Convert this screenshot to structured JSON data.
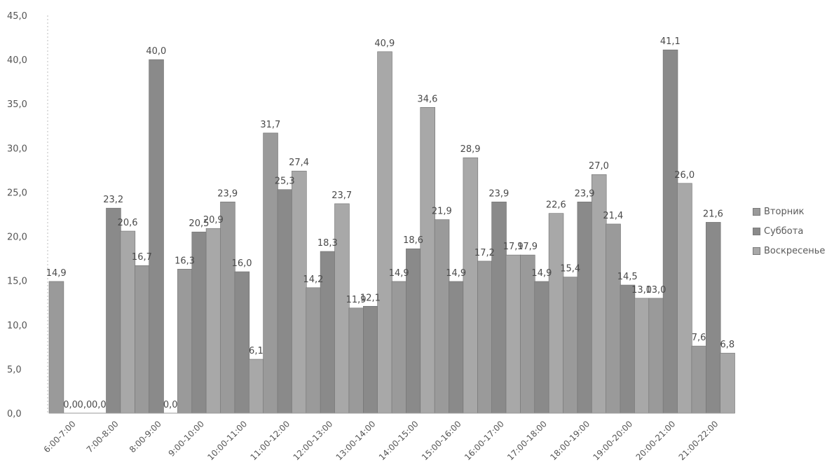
{
  "chart_data": {
    "type": "bar",
    "categories": [
      "6:00-7:00",
      "7:00-8:00",
      "8:00-9:00",
      "9:00-10:00",
      "10:00-11:00",
      "11:00-12:00",
      "12:00-13:00",
      "13:00-14:00",
      "14:00-15:00",
      "15:00-16:00",
      "16:00-17:00",
      "17:00-18:00",
      "18:00-19:00",
      "19:00-20:00",
      "20:00-21:00",
      "21:00-22:00"
    ],
    "series": [
      {
        "name": "Вторник",
        "color": "#9a9a9a",
        "values": [
          14.9,
          0.0,
          16.7,
          16.3,
          23.9,
          31.7,
          14.2,
          11.9,
          14.9,
          21.9,
          17.2,
          17.9,
          15.4,
          21.4,
          13.0,
          7.6
        ]
      },
      {
        "name": "Суббота",
        "color": "#8a8a8a",
        "values": [
          0.0,
          23.2,
          40.0,
          20.5,
          16.0,
          25.3,
          18.3,
          12.1,
          18.6,
          14.9,
          23.9,
          14.9,
          23.9,
          14.5,
          41.1,
          21.6
        ]
      },
      {
        "name": "Воскресенье",
        "color": "#a8a8a8",
        "values": [
          0.0,
          20.6,
          0.0,
          20.9,
          6.1,
          27.4,
          23.7,
          40.9,
          34.6,
          28.9,
          17.9,
          22.6,
          27.0,
          13.0,
          26.0,
          6.8
        ]
      }
    ],
    "data_labels": [
      [
        "14,9",
        "0,0",
        "16,7",
        "16,3",
        "23,9",
        "31,7",
        "14,2",
        "11,9",
        "14,9",
        "21,9",
        "17,2",
        "17,9",
        "15,4",
        "21,4",
        "13,0",
        "7,6"
      ],
      [
        "0,0",
        "23,2",
        "40,0",
        "20,5",
        "16,0",
        "25,3",
        "18,3",
        "12,1",
        "18,6",
        "14,9",
        "23,9",
        "14,9",
        "23,9",
        "14,5",
        "41,1",
        "21,6"
      ],
      [
        "0,0",
        "20,6",
        "0,0",
        "20,9",
        "6,1",
        "27,4",
        "23,7",
        "40,9",
        "34,6",
        "28,9",
        "17,9",
        "22,6",
        "27,0",
        "13,0",
        "26,0",
        "6,8"
      ]
    ],
    "y_ticks": [
      "0,0",
      "5,0",
      "10,0",
      "15,0",
      "20,0",
      "25,0",
      "30,0",
      "35,0",
      "40,0",
      "45,0"
    ],
    "ylim": [
      0,
      45
    ],
    "grid": false,
    "legend_position": "right",
    "title": "",
    "xlabel": "",
    "ylabel": ""
  }
}
